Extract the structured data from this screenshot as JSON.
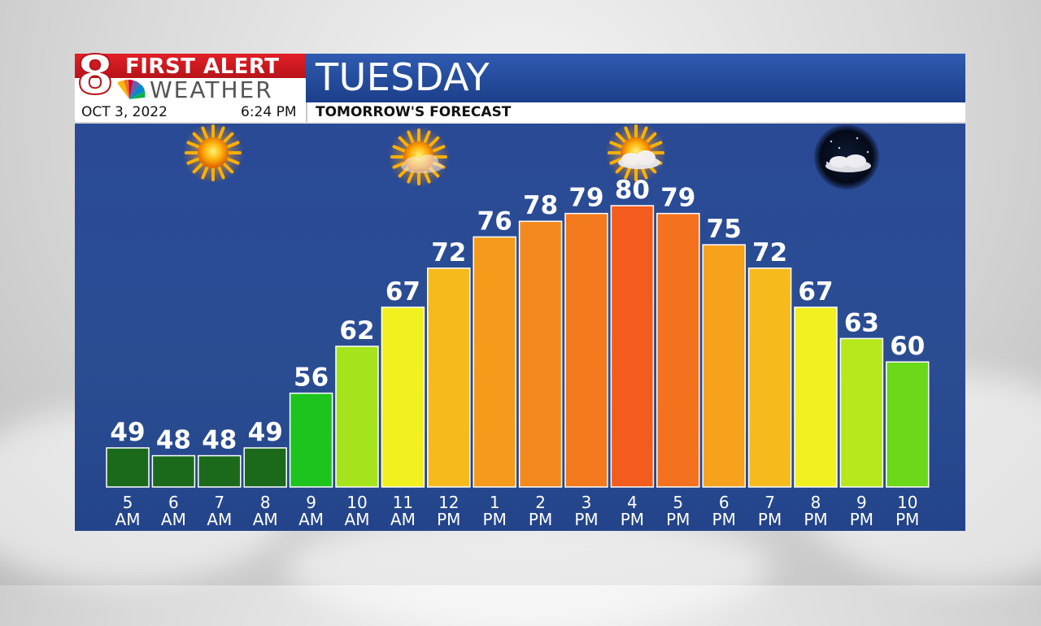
{
  "header": {
    "logo_number": "8",
    "logo_line1": "FIRST ALERT",
    "logo_line2": "WEATHER",
    "title": "TUESDAY",
    "date": "OCT 3, 2022",
    "time": "6:24 PM",
    "subtitle": "TOMORROW'S FORECAST"
  },
  "icons": [
    "sunny-icon",
    "mostly-sunny-icon",
    "partly-cloudy-icon",
    "partly-cloudy-night-icon"
  ],
  "chart_data": {
    "type": "bar",
    "title": "",
    "xlabel": "",
    "ylabel": "",
    "unit": "°F",
    "categories": [
      {
        "hour": "5",
        "ampm": "AM"
      },
      {
        "hour": "6",
        "ampm": "AM"
      },
      {
        "hour": "7",
        "ampm": "AM"
      },
      {
        "hour": "8",
        "ampm": "AM"
      },
      {
        "hour": "9",
        "ampm": "AM"
      },
      {
        "hour": "10",
        "ampm": "AM"
      },
      {
        "hour": "11",
        "ampm": "AM"
      },
      {
        "hour": "12",
        "ampm": "PM"
      },
      {
        "hour": "1",
        "ampm": "PM"
      },
      {
        "hour": "2",
        "ampm": "PM"
      },
      {
        "hour": "3",
        "ampm": "PM"
      },
      {
        "hour": "4",
        "ampm": "PM"
      },
      {
        "hour": "5",
        "ampm": "PM"
      },
      {
        "hour": "6",
        "ampm": "PM"
      },
      {
        "hour": "7",
        "ampm": "PM"
      },
      {
        "hour": "8",
        "ampm": "PM"
      },
      {
        "hour": "9",
        "ampm": "PM"
      },
      {
        "hour": "10",
        "ampm": "PM"
      }
    ],
    "values": [
      49,
      48,
      48,
      49,
      56,
      62,
      67,
      72,
      76,
      78,
      79,
      80,
      79,
      75,
      72,
      67,
      63,
      60
    ],
    "colors": [
      "#1b6a1c",
      "#1b6a1c",
      "#1b6a1c",
      "#1b6a1c",
      "#1ec41e",
      "#a5e41c",
      "#f2f01e",
      "#f6ba1c",
      "#f69a1c",
      "#f48a1e",
      "#f47a1e",
      "#f45c1e",
      "#f4721e",
      "#f6a21c",
      "#f6ba1c",
      "#f2f01e",
      "#b6e81c",
      "#6cd81a"
    ],
    "grid": false,
    "legend": "none"
  }
}
